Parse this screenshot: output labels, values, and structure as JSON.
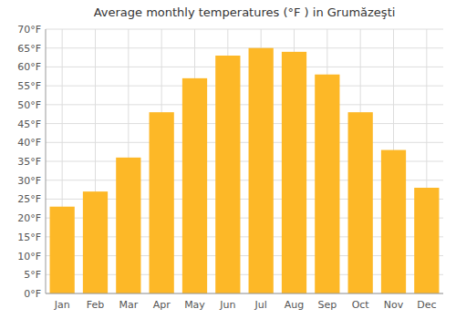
{
  "chart_data": {
    "type": "bar",
    "title": "Average monthly temperatures (°F ) in Grumăzeşti",
    "categories": [
      "Jan",
      "Feb",
      "Mar",
      "Apr",
      "May",
      "Jun",
      "Jul",
      "Aug",
      "Sep",
      "Oct",
      "Nov",
      "Dec"
    ],
    "values": [
      23,
      27,
      36,
      48,
      57,
      63,
      65,
      64,
      58,
      48,
      38,
      28
    ],
    "color": "#FDB827",
    "ylim": [
      0,
      70
    ],
    "yticks": [
      {
        "value": 0,
        "label": "0°F"
      },
      {
        "value": 5,
        "label": "5°F"
      },
      {
        "value": 10,
        "label": "10°F"
      },
      {
        "value": 15,
        "label": "15°F"
      },
      {
        "value": 20,
        "label": "20°F"
      },
      {
        "value": 25,
        "label": "25°F"
      },
      {
        "value": 30,
        "label": "30°F"
      },
      {
        "value": 35,
        "label": "35°F"
      },
      {
        "value": 40,
        "label": "40°F"
      },
      {
        "value": 45,
        "label": "45°F"
      },
      {
        "value": 50,
        "label": "50°F"
      },
      {
        "value": 55,
        "label": "55°F"
      },
      {
        "value": 60,
        "label": "60°F"
      },
      {
        "value": 65,
        "label": "65°F"
      },
      {
        "value": 70,
        "label": "70°F"
      }
    ],
    "grid": true
  }
}
